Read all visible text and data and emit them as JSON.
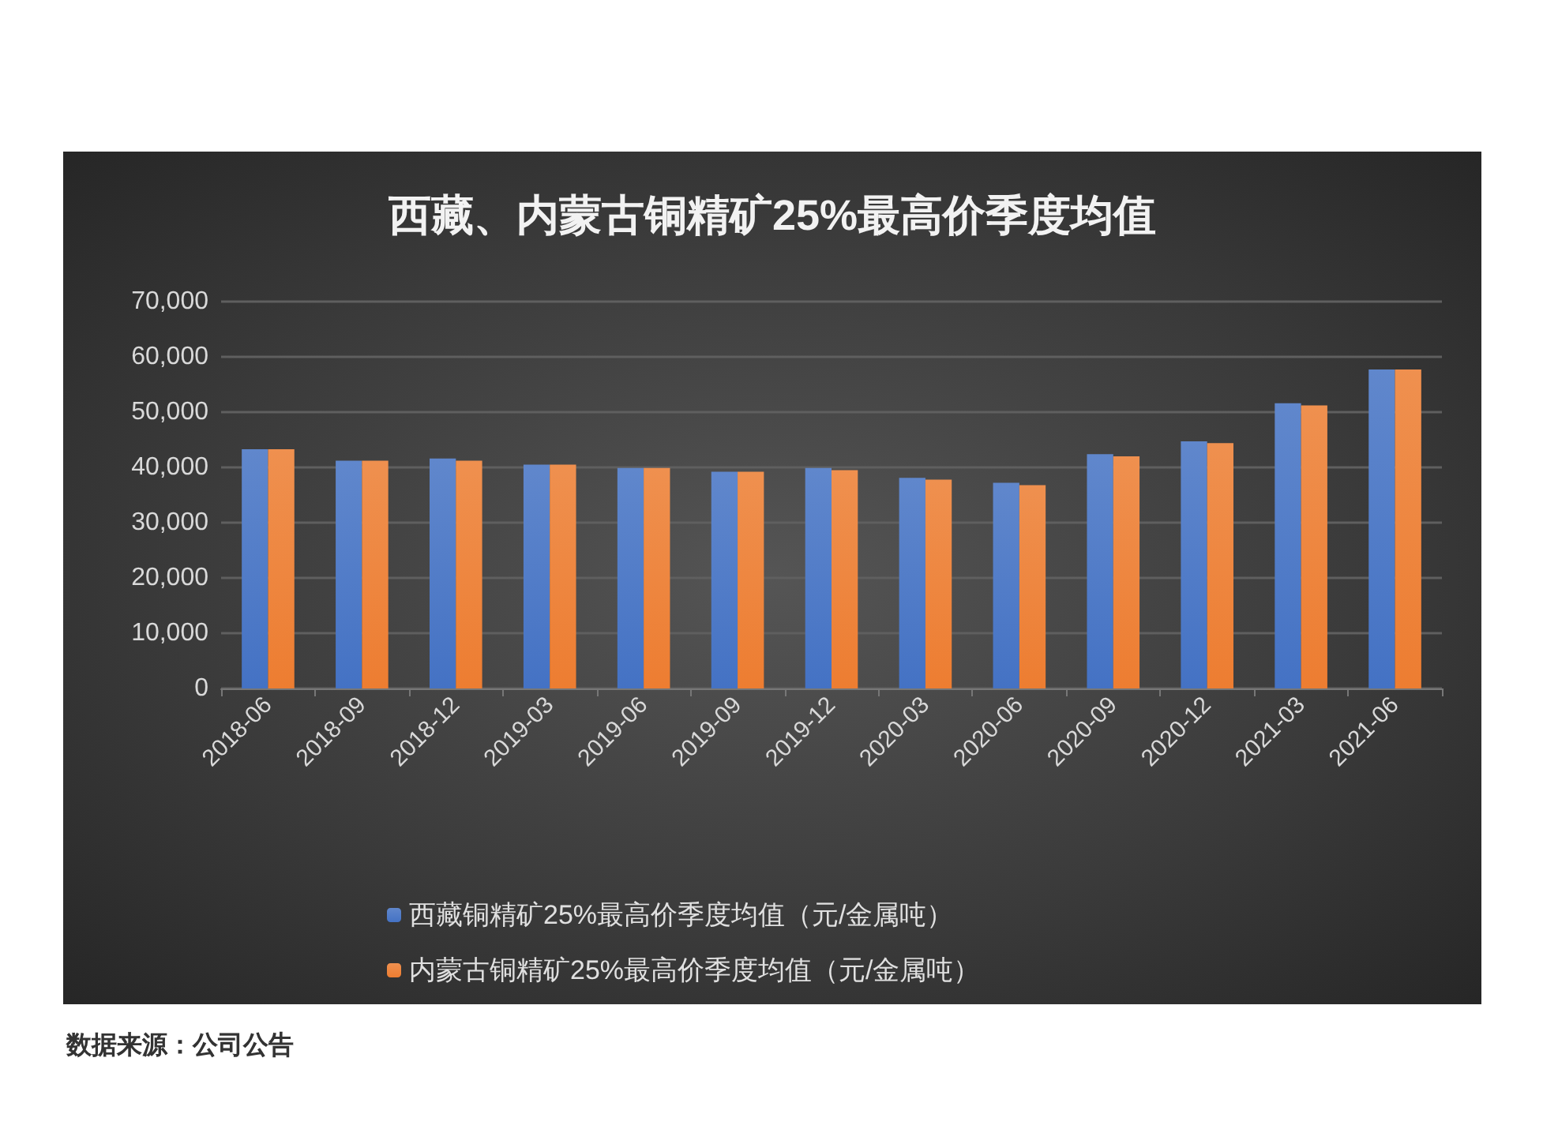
{
  "chart_data": {
    "type": "bar",
    "title": "西藏、内蒙古铜精矿25%最高价季度均值",
    "categories": [
      "2018-06",
      "2018-09",
      "2018-12",
      "2019-03",
      "2019-06",
      "2019-09",
      "2019-12",
      "2020-03",
      "2020-06",
      "2020-09",
      "2020-12",
      "2021-03",
      "2021-06"
    ],
    "series": [
      {
        "name": "西藏铜精矿25%最高价季度均值（元/金属吨）",
        "color": "#4472c4",
        "values": [
          43300,
          41200,
          41600,
          40500,
          39900,
          39200,
          39900,
          38100,
          37200,
          42400,
          44700,
          51600,
          57700
        ]
      },
      {
        "name": "内蒙古铜精矿25%最高价季度均值（元/金属吨）",
        "color": "#ed7d31",
        "values": [
          43300,
          41200,
          41200,
          40500,
          39900,
          39200,
          39500,
          37800,
          36800,
          42000,
          44400,
          51200,
          57700
        ]
      }
    ],
    "ylim": [
      0,
      70000
    ],
    "yticks": [
      0,
      {
        "value": 10000,
        "label": "10,000"
      },
      {
        "value": 20000,
        "label": "20,000"
      },
      {
        "value": 30000,
        "label": "30,000"
      },
      {
        "value": 40000,
        "label": "40,000"
      },
      {
        "value": 50000,
        "label": "50,000"
      },
      {
        "value": 60000,
        "label": "60,000"
      },
      {
        "value": 70000,
        "label": "70,000"
      }
    ],
    "grid": "y",
    "legend": "bottom",
    "annotations": [
      "数据来源：公司公告"
    ]
  }
}
